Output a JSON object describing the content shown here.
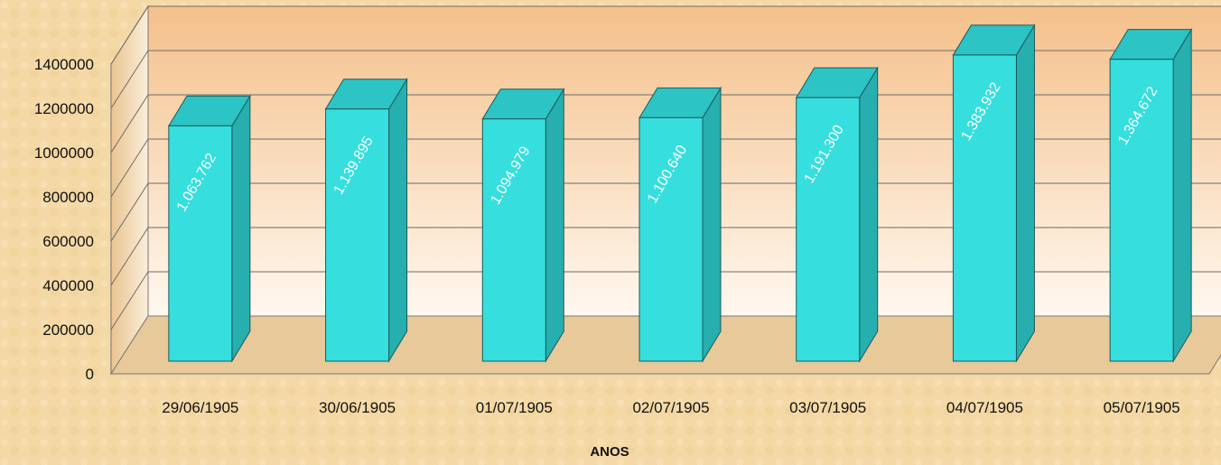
{
  "chart_data": {
    "type": "bar",
    "categories": [
      "29/06/1905",
      "30/06/1905",
      "01/07/1905",
      "02/07/1905",
      "03/07/1905",
      "04/07/1905",
      "05/07/1905"
    ],
    "values": [
      1063762,
      1139895,
      1094979,
      1100640,
      1191300,
      1383932,
      1364672
    ],
    "data_labels": [
      "1.063.762",
      "1.139.895",
      "1.094.979",
      "1.100.640",
      "1.191.300",
      "1.383.932",
      "1.364.672"
    ],
    "y_ticks": [
      "0",
      "200000",
      "400000",
      "600000",
      "800000",
      "1000000",
      "1200000",
      "1400000"
    ],
    "ylim": [
      0,
      1400000
    ],
    "xlabel": "ANOS",
    "ylabel": "",
    "title": "",
    "grid": true,
    "legend": "none",
    "colors": {
      "bar_front": "#36dede",
      "bar_top": "#2cc4c4",
      "bar_side": "#27aeae",
      "wall_top": "#f4c08a",
      "wall_bottom": "#fff8ef",
      "floor": "#e8c99a"
    }
  }
}
